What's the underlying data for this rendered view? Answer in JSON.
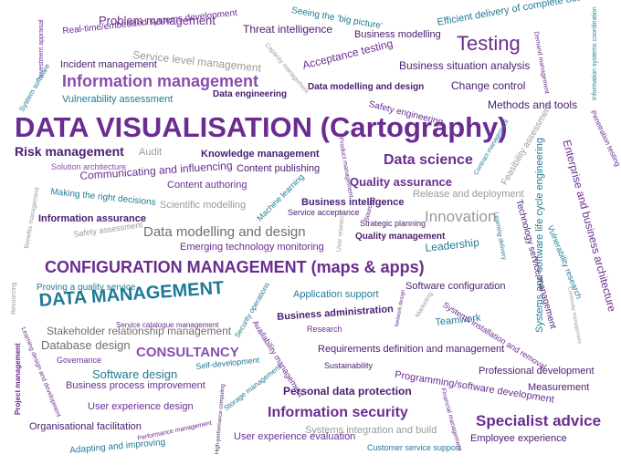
{
  "cloud": {
    "w001": "Problem management",
    "w002": "Threat intelligence",
    "w003": "Seeing the ‘big picture’",
    "w004": "Efficient delivery of complete outcomes",
    "w005": "Real-time/embedded systems development",
    "w006": "Business modelling",
    "w007": "Testing",
    "w008": "Service level management",
    "w009": "Acceptance testing",
    "w010": "Incident management",
    "w011": "Business situation analysis",
    "w012": "Information management",
    "w013": "Change control",
    "w014": "Data modelling and design",
    "w015": "Vulnerability assessment",
    "w016": "Data engineering",
    "w017": "Methods and tools",
    "w018": "Safety engineering",
    "w019": "DATA VISUALISATION (Cartography)",
    "w020": "Risk management",
    "w021": "Audit",
    "w022": "Knowledge management",
    "w023": "Data science",
    "w024": "Solution architecture",
    "w025": "Content publishing",
    "w026": "Communicating and influencing",
    "w027": "Quality assurance",
    "w028": "Content authoring",
    "w029": "Release and deployment",
    "w030": "Making the right decisions",
    "w031": "Scientific modelling",
    "w032": "Business intelligence",
    "w033": "Service acceptance",
    "w034": "Innovation",
    "w035": "Information assurance",
    "w036": "Strategic planning",
    "w037": "Data modelling and design",
    "w038": "Safety assessment",
    "w039": "Quality management",
    "w040": "Emerging technology monitoring",
    "w041": "Leadership",
    "w042": "CONFIGURATION MANAGEMENT (maps & apps)",
    "w043": "Proving a quality service",
    "w044": "Software configuration",
    "w045": "DATA MANAGEMENT",
    "w046": "Application support",
    "w047": "Service catalogue management",
    "w048": "Business administration",
    "w049": "Stakeholder relationship management",
    "w050": "Research",
    "w051": "Teamwork",
    "w052": "Database design",
    "w053": "CONSULTANCY",
    "w054": "Requirements definition and management",
    "w055": "Governance",
    "w056": "Sustainability",
    "w057": "Self-development",
    "w058": "Software design",
    "w059": "Professional development",
    "w060": "Business process improvement",
    "w061": "Programming/software development",
    "w062": "Measurement",
    "w063": "Personal data protection",
    "w064": "User experience design",
    "w065": "Information security",
    "w066": "Specialist advice",
    "w067": "Organisational facilitation",
    "w068": "Systems integration and build",
    "w069": "Employee experience",
    "w070": "User experience evaluation",
    "w071": "Adapting and improving",
    "w072": "Customer service support",
    "w073": "Investment appraisal",
    "w074": "System software",
    "w075": "Capacity management",
    "w076": "Demand management",
    "w077": "Information systems coordination",
    "w078": "Product management",
    "w079": "Contract management",
    "w080": "Feasibility assessment",
    "w081": "Penetration testing",
    "w082": "Systems and software life cycle engineering",
    "w083": "Enterprise and business architecture",
    "w084": "Machine learning",
    "w085": "User research",
    "w086": "Sourcing",
    "w087": "Learning delivery",
    "w088": "Technology service management",
    "w089": "Vulnerability research",
    "w090": "Benefits management",
    "w091": "Security operations",
    "w092": "Network design",
    "w093": "Marketing",
    "w094": "Systems installation and removal",
    "w095": "Continuity management",
    "w096": "Resourcing",
    "w097": "Availability management",
    "w098": "Project management",
    "w099": "Learning design and development",
    "w100": "Storage management",
    "w101": "High-performance computing",
    "w102": "Performance management",
    "w103": "Financial management"
  }
}
